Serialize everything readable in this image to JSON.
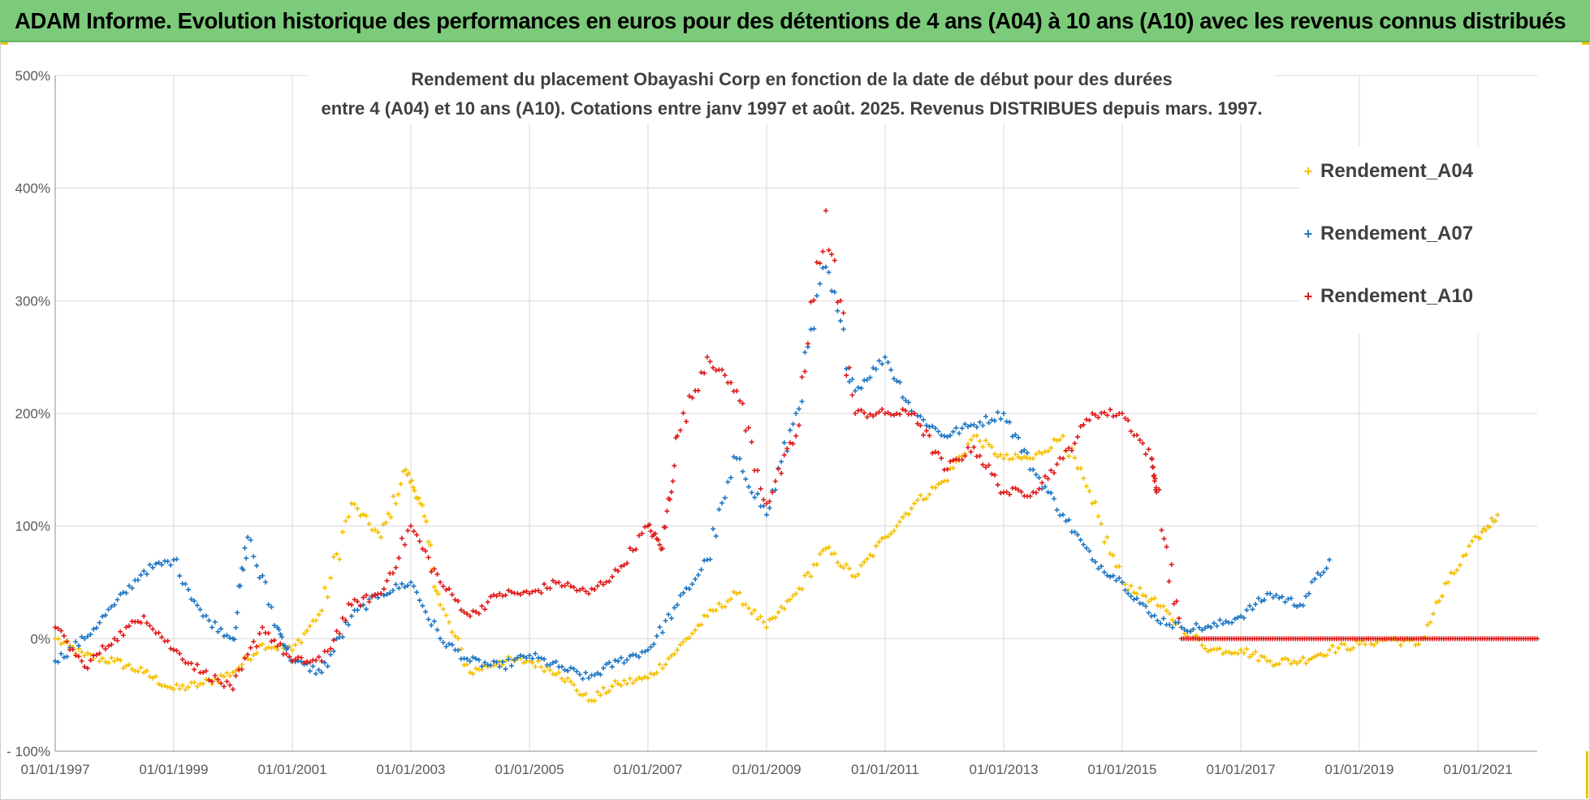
{
  "banner": {
    "text": "ADAM Informe. Evolution historique des performances en euros pour des détentions de 4 ans (A04) à 10 ans (A10) avec les revenus connus distribués",
    "background": "#7ccb7a"
  },
  "chart_data": {
    "type": "scatter",
    "title_line1": "Rendement du placement Obayashi Corp en fonction de la date de début pour des durées",
    "title_line2": "entre 4 (A04) et 10 ans (A10). Cotations entre janv 1997 et août. 2025. Revenus DISTRIBUES depuis mars. 1997.",
    "x_axis": {
      "type": "date",
      "range": [
        "1997-01-01",
        "2022-01-01"
      ],
      "tick_labels": [
        "01/01/1997",
        "01/01/1999",
        "01/01/2001",
        "01/01/2003",
        "01/01/2005",
        "01/01/2007",
        "01/01/2009",
        "01/01/2011",
        "01/01/2013",
        "01/01/2015",
        "01/01/2017",
        "01/01/2019",
        "01/01/2021"
      ]
    },
    "y_axis": {
      "range": [
        -100,
        500
      ],
      "unit": "%",
      "tick_labels": [
        "- 100%",
        "0%",
        "100%",
        "200%",
        "300%",
        "400%",
        "500%"
      ]
    },
    "grid": true,
    "legend_position": "right",
    "marker": "+",
    "series": [
      {
        "name": "Rendement_A04",
        "color": "#f5c000",
        "x": [
          "1997-01-01",
          "1997-07-01",
          "1998-01-01",
          "1998-07-01",
          "1999-01-01",
          "1999-07-01",
          "2000-01-01",
          "2000-07-01",
          "2001-01-01",
          "2001-07-01",
          "2002-01-01",
          "2002-07-01",
          "2002-12-01",
          "2003-03-01",
          "2003-07-01",
          "2004-01-01",
          "2004-07-01",
          "2005-01-01",
          "2005-07-01",
          "2006-01-01",
          "2006-07-01",
          "2007-01-01",
          "2007-07-01",
          "2008-01-01",
          "2008-07-01",
          "2009-01-01",
          "2009-07-01",
          "2010-01-01",
          "2010-07-01",
          "2011-01-01",
          "2011-07-01",
          "2012-01-01",
          "2012-07-01",
          "2013-01-01",
          "2013-07-01",
          "2014-01-01",
          "2014-07-01",
          "2015-01-01",
          "2015-07-01",
          "2016-01-01",
          "2016-07-01",
          "2017-01-01",
          "2017-07-01",
          "2018-01-01",
          "2018-07-01",
          "2019-01-01",
          "2019-07-01",
          "2020-01-01",
          "2020-07-01",
          "2021-01-01",
          "2021-05-01"
        ],
        "y": [
          0,
          -15,
          -20,
          -30,
          -45,
          -40,
          -30,
          -5,
          -10,
          25,
          120,
          90,
          150,
          120,
          30,
          -30,
          -20,
          -20,
          -30,
          -55,
          -40,
          -35,
          -10,
          20,
          40,
          10,
          40,
          80,
          55,
          90,
          120,
          140,
          180,
          160,
          160,
          180,
          120,
          50,
          35,
          10,
          -10,
          -10,
          -20,
          -20,
          -10,
          -5,
          0,
          -5,
          50,
          90,
          110
        ]
      },
      {
        "name": "Rendement_A07",
        "color": "#1f77c4",
        "x": [
          "1997-01-01",
          "1997-07-01",
          "1998-01-01",
          "1998-07-01",
          "1999-01-01",
          "1999-07-01",
          "2000-01-01",
          "2000-04-01",
          "2000-10-01",
          "2001-01-01",
          "2001-07-01",
          "2002-01-01",
          "2002-07-01",
          "2003-01-01",
          "2003-07-01",
          "2004-01-01",
          "2004-07-01",
          "2005-01-01",
          "2005-07-01",
          "2006-01-01",
          "2006-07-01",
          "2007-01-01",
          "2007-07-01",
          "2008-01-01",
          "2008-07-01",
          "2009-01-01",
          "2009-07-01",
          "2010-01-01",
          "2010-07-01",
          "2011-01-01",
          "2011-07-01",
          "2012-01-01",
          "2012-07-01",
          "2013-01-01",
          "2013-07-01",
          "2014-01-01",
          "2014-07-01",
          "2015-01-01",
          "2015-07-01",
          "2016-01-01",
          "2016-07-01",
          "2017-01-01",
          "2017-07-01",
          "2018-01-01",
          "2018-07-01"
        ],
        "y": [
          -20,
          0,
          30,
          60,
          70,
          20,
          0,
          90,
          10,
          -20,
          -30,
          20,
          40,
          50,
          0,
          -20,
          -25,
          -15,
          -25,
          -35,
          -20,
          -10,
          30,
          70,
          160,
          110,
          200,
          330,
          220,
          250,
          200,
          180,
          190,
          200,
          150,
          110,
          70,
          50,
          20,
          10,
          10,
          20,
          40,
          30,
          70
        ]
      },
      {
        "name": "Rendement_A10",
        "color": "#e01b1b",
        "x": [
          "1997-01-01",
          "1997-07-01",
          "1998-01-01",
          "1998-07-01",
          "1999-01-01",
          "1999-07-01",
          "2000-01-01",
          "2000-07-01",
          "2001-01-01",
          "2001-07-01",
          "2002-01-01",
          "2002-07-01",
          "2003-01-01",
          "2003-07-01",
          "2004-01-01",
          "2004-07-01",
          "2005-01-01",
          "2005-07-01",
          "2006-01-01",
          "2006-07-01",
          "2007-01-01",
          "2007-04-01",
          "2007-07-01",
          "2008-01-01",
          "2008-07-01",
          "2009-01-01",
          "2009-07-01",
          "2010-01-01",
          "2010-07-01",
          "2011-01-01",
          "2011-07-01",
          "2012-01-01",
          "2012-07-01",
          "2013-01-01",
          "2013-07-01",
          "2014-01-01",
          "2014-07-01",
          "2015-01-01",
          "2015-07-01",
          "2015-08-01",
          "2016-01-01",
          "2017-01-01",
          "2018-01-01",
          "2019-01-01",
          "2020-01-01",
          "2021-01-01",
          "2022-01-01"
        ],
        "y": [
          10,
          -25,
          0,
          20,
          -10,
          -30,
          -45,
          10,
          -20,
          -20,
          30,
          40,
          100,
          50,
          20,
          40,
          40,
          50,
          40,
          60,
          100,
          80,
          180,
          250,
          220,
          120,
          180,
          380,
          200,
          200,
          200,
          150,
          170,
          130,
          130,
          160,
          200,
          200,
          160,
          130,
          0,
          0,
          0,
          0,
          0,
          0,
          0
        ]
      }
    ]
  }
}
